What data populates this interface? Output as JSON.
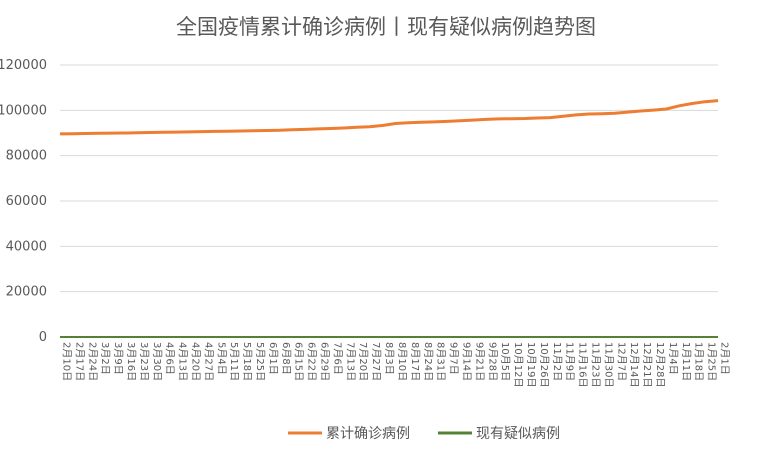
{
  "chart_data": {
    "type": "line",
    "title": "全国疫情累计确诊病例丨现有疑似病例趋势图",
    "xlabel": "",
    "ylabel": "",
    "ylim": [
      0,
      120000
    ],
    "y_ticks": [
      "0",
      "20000",
      "40000",
      "60000",
      "80000",
      "100000",
      "120000"
    ],
    "grid": true,
    "legend_position": "bottom",
    "x": [
      "2月10日",
      "2月17日",
      "2月24日",
      "3月2日",
      "3月9日",
      "3月16日",
      "3月23日",
      "3月30日",
      "4月6日",
      "4月13日",
      "4月20日",
      "4月27日",
      "5月4日",
      "5月11日",
      "5月18日",
      "5月25日",
      "6月1日",
      "6月8日",
      "6月15日",
      "6月22日",
      "6月29日",
      "7月6日",
      "7月13日",
      "7月20日",
      "7月27日",
      "8月3日",
      "8月10日",
      "8月17日",
      "8月24日",
      "8月31日",
      "9月7日",
      "9月14日",
      "9月21日",
      "9月28日",
      "10月5日",
      "10月12日",
      "10月19日",
      "10月26日",
      "11月2日",
      "11月9日",
      "11月16日",
      "11月23日",
      "11月30日",
      "12月7日",
      "12月14日",
      "12月21日",
      "12月28日",
      "1月4日",
      "1月11日",
      "1月18日",
      "1月25日",
      "2月1日"
    ],
    "series": [
      {
        "name": "累计确诊病例",
        "color": "#ED7D31",
        "values": [
          89600,
          89700,
          89800,
          89900,
          89950,
          90000,
          90100,
          90200,
          90300,
          90400,
          90500,
          90600,
          90700,
          90800,
          90900,
          91000,
          91100,
          91200,
          91400,
          91600,
          91800,
          92000,
          92200,
          92500,
          92800,
          93300,
          94200,
          94500,
          94700,
          94900,
          95100,
          95400,
          95700,
          96000,
          96200,
          96300,
          96400,
          96600,
          96800,
          97400,
          98000,
          98400,
          98500,
          98700,
          99200,
          99700,
          100100,
          100600,
          102000,
          103000,
          103800,
          104300
        ]
      },
      {
        "name": "现有疑似病例",
        "color": "#548235",
        "values": [
          10,
          10,
          10,
          10,
          10,
          10,
          10,
          10,
          10,
          10,
          10,
          10,
          10,
          10,
          10,
          10,
          10,
          10,
          10,
          10,
          10,
          10,
          10,
          10,
          10,
          10,
          10,
          10,
          10,
          10,
          10,
          10,
          10,
          10,
          10,
          10,
          10,
          10,
          10,
          10,
          10,
          10,
          10,
          10,
          10,
          10,
          10,
          10,
          10,
          10,
          10,
          10
        ]
      }
    ]
  }
}
